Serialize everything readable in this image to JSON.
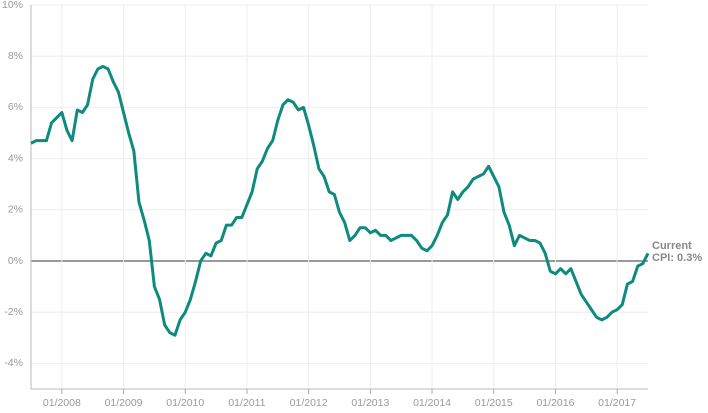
{
  "chart_data": {
    "type": "line",
    "x": [
      "2007-07",
      "2007-08",
      "2007-09",
      "2007-10",
      "2007-11",
      "2007-12",
      "2008-01",
      "2008-02",
      "2008-03",
      "2008-04",
      "2008-05",
      "2008-06",
      "2008-07",
      "2008-08",
      "2008-09",
      "2008-10",
      "2008-11",
      "2008-12",
      "2009-01",
      "2009-02",
      "2009-03",
      "2009-04",
      "2009-05",
      "2009-06",
      "2009-07",
      "2009-08",
      "2009-09",
      "2009-10",
      "2009-11",
      "2009-12",
      "2010-01",
      "2010-02",
      "2010-03",
      "2010-04",
      "2010-05",
      "2010-06",
      "2010-07",
      "2010-08",
      "2010-09",
      "2010-10",
      "2010-11",
      "2010-12",
      "2011-01",
      "2011-02",
      "2011-03",
      "2011-04",
      "2011-05",
      "2011-06",
      "2011-07",
      "2011-08",
      "2011-09",
      "2011-10",
      "2011-11",
      "2011-12",
      "2012-01",
      "2012-02",
      "2012-03",
      "2012-04",
      "2012-05",
      "2012-06",
      "2012-07",
      "2012-08",
      "2012-09",
      "2012-10",
      "2012-11",
      "2012-12",
      "2013-01",
      "2013-02",
      "2013-03",
      "2013-04",
      "2013-05",
      "2013-06",
      "2013-07",
      "2013-08",
      "2013-09",
      "2013-10",
      "2013-11",
      "2013-12",
      "2014-01",
      "2014-02",
      "2014-03",
      "2014-04",
      "2014-05",
      "2014-06",
      "2014-07",
      "2014-08",
      "2014-09",
      "2014-10",
      "2014-11",
      "2014-12",
      "2015-01",
      "2015-02",
      "2015-03",
      "2015-04",
      "2015-05",
      "2015-06",
      "2015-07",
      "2015-08",
      "2015-09",
      "2015-10",
      "2015-11",
      "2015-12",
      "2016-01",
      "2016-02",
      "2016-03",
      "2016-04",
      "2016-05",
      "2016-06",
      "2016-07",
      "2016-08",
      "2016-09",
      "2016-10",
      "2016-11",
      "2016-12",
      "2017-01",
      "2017-02",
      "2017-03",
      "2017-04",
      "2017-05",
      "2017-06",
      "2017-07"
    ],
    "series": [
      {
        "color": "#0f8a7e",
        "values": [
          4.6,
          4.7,
          4.7,
          4.7,
          5.4,
          5.6,
          5.8,
          5.1,
          4.7,
          5.9,
          5.8,
          6.1,
          7.1,
          7.5,
          7.6,
          7.5,
          7.0,
          6.6,
          5.8,
          5.0,
          4.3,
          2.3,
          1.6,
          0.8,
          -1.0,
          -1.5,
          -2.5,
          -2.8,
          -2.9,
          -2.3,
          -2.0,
          -1.5,
          -0.8,
          0.0,
          0.3,
          0.2,
          0.7,
          0.8,
          1.4,
          1.4,
          1.7,
          1.7,
          2.2,
          2.7,
          3.6,
          3.9,
          4.4,
          4.7,
          5.5,
          6.1,
          6.3,
          6.2,
          5.9,
          6.0,
          5.3,
          4.5,
          3.6,
          3.3,
          2.7,
          2.6,
          1.9,
          1.5,
          0.8,
          1.0,
          1.3,
          1.3,
          1.1,
          1.2,
          1.0,
          1.0,
          0.8,
          0.9,
          1.0,
          1.0,
          1.0,
          0.8,
          0.5,
          0.4,
          0.6,
          1.0,
          1.5,
          1.8,
          2.7,
          2.4,
          2.7,
          2.9,
          3.2,
          3.3,
          3.4,
          3.7,
          3.3,
          2.9,
          1.9,
          1.4,
          0.6,
          1.0,
          0.9,
          0.8,
          0.8,
          0.7,
          0.3,
          -0.4,
          -0.5,
          -0.3,
          -0.5,
          -0.3,
          -0.8,
          -1.3,
          -1.6,
          -1.9,
          -2.2,
          -2.3,
          -2.2,
          -2.0,
          -1.9,
          -1.7,
          -0.9,
          -0.8,
          -0.2,
          -0.1,
          0.3
        ]
      }
    ],
    "xlim": [
      "2007-07",
      "2017-07"
    ],
    "xticks": [
      {
        "value": "2008-01",
        "label": "01/2008"
      },
      {
        "value": "2009-01",
        "label": "01/2009"
      },
      {
        "value": "2010-01",
        "label": "01/2010"
      },
      {
        "value": "2011-01",
        "label": "01/2011"
      },
      {
        "value": "2012-01",
        "label": "01/2012"
      },
      {
        "value": "2013-01",
        "label": "01/2013"
      },
      {
        "value": "2014-01",
        "label": "01/2014"
      },
      {
        "value": "2015-01",
        "label": "01/2015"
      },
      {
        "value": "2016-01",
        "label": "01/2016"
      },
      {
        "value": "2017-01",
        "label": "01/2017"
      }
    ],
    "ylim": [
      -5,
      10
    ],
    "yticks": [
      {
        "value": -4,
        "label": "-4%"
      },
      {
        "value": -2,
        "label": "-2%"
      },
      {
        "value": 0,
        "label": "0%"
      },
      {
        "value": 2,
        "label": "2%"
      },
      {
        "value": 4,
        "label": "4%"
      },
      {
        "value": 6,
        "label": "6%"
      },
      {
        "value": 8,
        "label": "8%"
      },
      {
        "value": 10,
        "label": "10%"
      }
    ],
    "grid": true,
    "annotation": [
      "Current",
      "CPI: 0.3%"
    ]
  }
}
